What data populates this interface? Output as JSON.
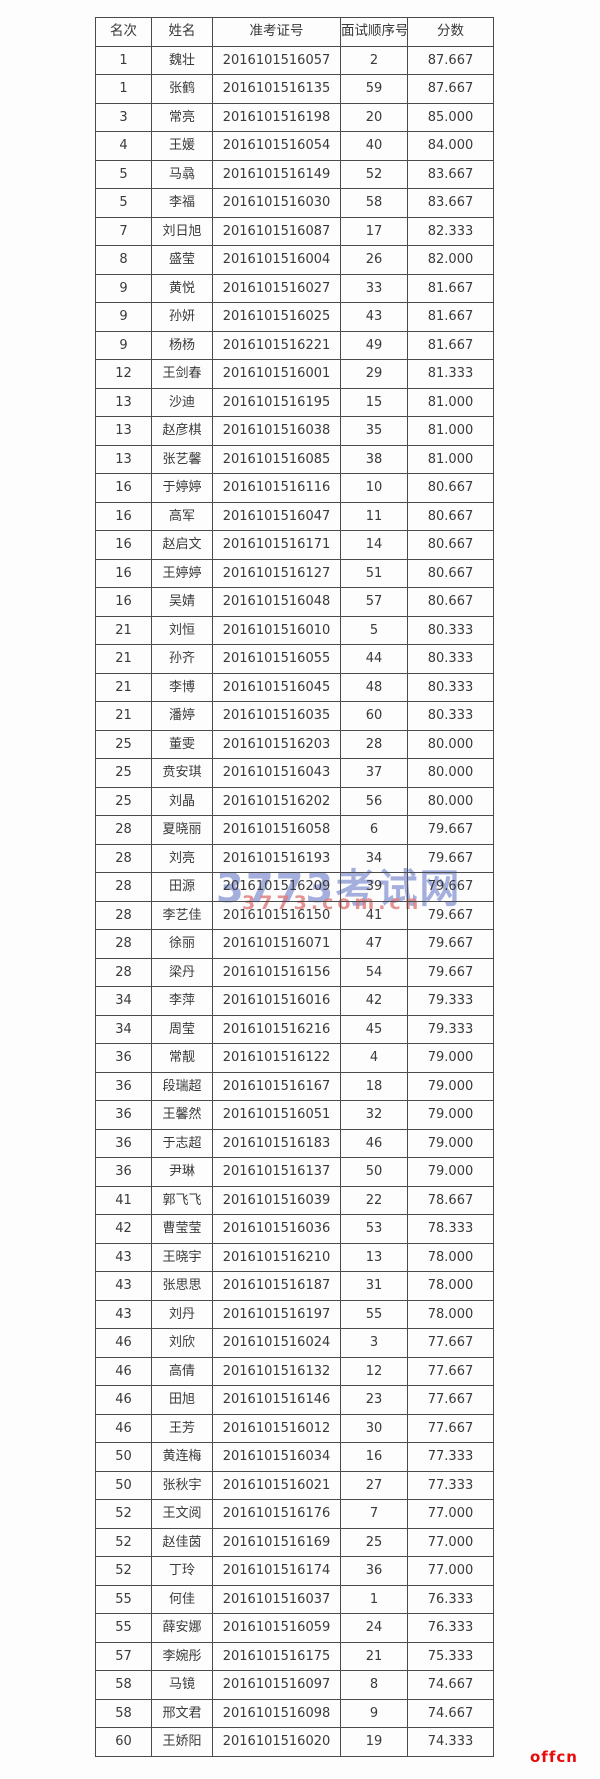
{
  "colors": {
    "watermark_blue": "#8d9bd6",
    "watermark_red": "#df8080",
    "offcn_red": "#e60c0c",
    "table_border": "#4b4b4b",
    "table_text": "#3a3a3a",
    "page_background": "#fdfdfd"
  },
  "watermarks": {
    "site_name": "3773考试网",
    "site_url": "3773.com.cn",
    "offcn": "offcn"
  },
  "table": {
    "headers": [
      "名次",
      "姓名",
      "准考证号",
      "面试顺序号",
      "分数"
    ],
    "rows": [
      [
        "1",
        "魏壮",
        "2016101516057",
        "2",
        "87.667"
      ],
      [
        "1",
        "张鹤",
        "2016101516135",
        "59",
        "87.667"
      ],
      [
        "3",
        "常亮",
        "2016101516198",
        "20",
        "85.000"
      ],
      [
        "4",
        "王媛",
        "2016101516054",
        "40",
        "84.000"
      ],
      [
        "5",
        "马骉",
        "2016101516149",
        "52",
        "83.667"
      ],
      [
        "5",
        "李福",
        "2016101516030",
        "58",
        "83.667"
      ],
      [
        "7",
        "刘日旭",
        "2016101516087",
        "17",
        "82.333"
      ],
      [
        "8",
        "盛莹",
        "2016101516004",
        "26",
        "82.000"
      ],
      [
        "9",
        "黄悦",
        "2016101516027",
        "33",
        "81.667"
      ],
      [
        "9",
        "孙妍",
        "2016101516025",
        "43",
        "81.667"
      ],
      [
        "9",
        "杨杨",
        "2016101516221",
        "49",
        "81.667"
      ],
      [
        "12",
        "王剑春",
        "2016101516001",
        "29",
        "81.333"
      ],
      [
        "13",
        "沙迪",
        "2016101516195",
        "15",
        "81.000"
      ],
      [
        "13",
        "赵彦棋",
        "2016101516038",
        "35",
        "81.000"
      ],
      [
        "13",
        "张艺馨",
        "2016101516085",
        "38",
        "81.000"
      ],
      [
        "16",
        "于婷婷",
        "2016101516116",
        "10",
        "80.667"
      ],
      [
        "16",
        "高军",
        "2016101516047",
        "11",
        "80.667"
      ],
      [
        "16",
        "赵启文",
        "2016101516171",
        "14",
        "80.667"
      ],
      [
        "16",
        "王婷婷",
        "2016101516127",
        "51",
        "80.667"
      ],
      [
        "16",
        "吴婧",
        "2016101516048",
        "57",
        "80.667"
      ],
      [
        "21",
        "刘恒",
        "2016101516010",
        "5",
        "80.333"
      ],
      [
        "21",
        "孙齐",
        "2016101516055",
        "44",
        "80.333"
      ],
      [
        "21",
        "李博",
        "2016101516045",
        "48",
        "80.333"
      ],
      [
        "21",
        "潘婷",
        "2016101516035",
        "60",
        "80.333"
      ],
      [
        "25",
        "董雯",
        "2016101516203",
        "28",
        "80.000"
      ],
      [
        "25",
        "贲安琪",
        "2016101516043",
        "37",
        "80.000"
      ],
      [
        "25",
        "刘晶",
        "2016101516202",
        "56",
        "80.000"
      ],
      [
        "28",
        "夏晓丽",
        "2016101516058",
        "6",
        "79.667"
      ],
      [
        "28",
        "刘亮",
        "2016101516193",
        "34",
        "79.667"
      ],
      [
        "28",
        "田源",
        "2016101516209",
        "39",
        "79.667"
      ],
      [
        "28",
        "李艺佳",
        "2016101516150",
        "41",
        "79.667"
      ],
      [
        "28",
        "徐丽",
        "2016101516071",
        "47",
        "79.667"
      ],
      [
        "28",
        "梁丹",
        "2016101516156",
        "54",
        "79.667"
      ],
      [
        "34",
        "李萍",
        "2016101516016",
        "42",
        "79.333"
      ],
      [
        "34",
        "周莹",
        "2016101516216",
        "45",
        "79.333"
      ],
      [
        "36",
        "常靓",
        "2016101516122",
        "4",
        "79.000"
      ],
      [
        "36",
        "段瑞超",
        "2016101516167",
        "18",
        "79.000"
      ],
      [
        "36",
        "王馨然",
        "2016101516051",
        "32",
        "79.000"
      ],
      [
        "36",
        "于志超",
        "2016101516183",
        "46",
        "79.000"
      ],
      [
        "36",
        "尹琳",
        "2016101516137",
        "50",
        "79.000"
      ],
      [
        "41",
        "郭飞飞",
        "2016101516039",
        "22",
        "78.667"
      ],
      [
        "42",
        "曹莹莹",
        "2016101516036",
        "53",
        "78.333"
      ],
      [
        "43",
        "王晓宇",
        "2016101516210",
        "13",
        "78.000"
      ],
      [
        "43",
        "张思思",
        "2016101516187",
        "31",
        "78.000"
      ],
      [
        "43",
        "刘丹",
        "2016101516197",
        "55",
        "78.000"
      ],
      [
        "46",
        "刘欣",
        "2016101516024",
        "3",
        "77.667"
      ],
      [
        "46",
        "高倩",
        "2016101516132",
        "12",
        "77.667"
      ],
      [
        "46",
        "田旭",
        "2016101516146",
        "23",
        "77.667"
      ],
      [
        "46",
        "王芳",
        "2016101516012",
        "30",
        "77.667"
      ],
      [
        "50",
        "黄连梅",
        "2016101516034",
        "16",
        "77.333"
      ],
      [
        "50",
        "张秋宇",
        "2016101516021",
        "27",
        "77.333"
      ],
      [
        "52",
        "王文阅",
        "2016101516176",
        "7",
        "77.000"
      ],
      [
        "52",
        "赵佳茵",
        "2016101516169",
        "25",
        "77.000"
      ],
      [
        "52",
        "丁玲",
        "2016101516174",
        "36",
        "77.000"
      ],
      [
        "55",
        "何佳",
        "2016101516037",
        "1",
        "76.333"
      ],
      [
        "55",
        "薛安娜",
        "2016101516059",
        "24",
        "76.333"
      ],
      [
        "57",
        "李婉彤",
        "2016101516175",
        "21",
        "75.333"
      ],
      [
        "58",
        "马镜",
        "2016101516097",
        "8",
        "74.667"
      ],
      [
        "58",
        "邢文君",
        "2016101516098",
        "9",
        "74.667"
      ],
      [
        "60",
        "王娇阳",
        "2016101516020",
        "19",
        "74.333"
      ]
    ]
  }
}
